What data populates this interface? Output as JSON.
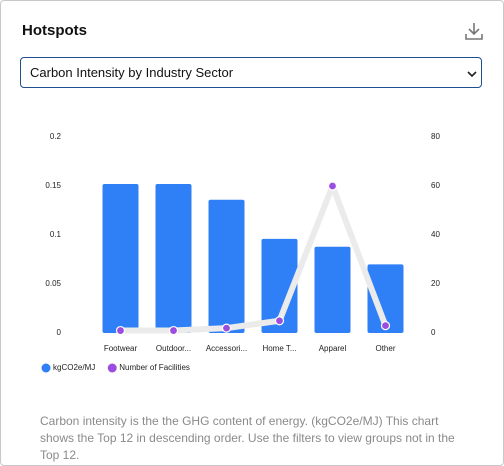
{
  "header": {
    "title": "Hotspots"
  },
  "dropdown": {
    "selected": "Carbon Intensity by Industry Sector"
  },
  "chart_data": {
    "type": "bar",
    "categories": [
      "Footwear",
      "Outdoor...",
      "Accessori...",
      "Home T...",
      "Apparel",
      "Other"
    ],
    "series": [
      {
        "name": "kgCO2e/MJ",
        "color": "#2f7ff6",
        "values": [
          0.152,
          0.152,
          0.136,
          0.096,
          0.088,
          0.07
        ]
      },
      {
        "name": "Number of Facilities",
        "color": "#9b4de0",
        "type": "line",
        "line_color": "#ebebeb",
        "axis": "y2",
        "values": [
          1,
          1,
          2,
          5,
          60,
          3
        ]
      }
    ],
    "ylim": [
      0,
      0.2
    ],
    "yticks": [
      0,
      0.05,
      0.1,
      0.15,
      0.2
    ],
    "y2lim": [
      0,
      80
    ],
    "y2ticks": [
      0,
      20,
      40,
      60,
      80
    ]
  },
  "footnote": "Carbon intensity is the the GHG content of energy. (kgCO2e/MJ) This chart shows the Top 12 in descending order. Use the filters to view groups not in the Top 12."
}
